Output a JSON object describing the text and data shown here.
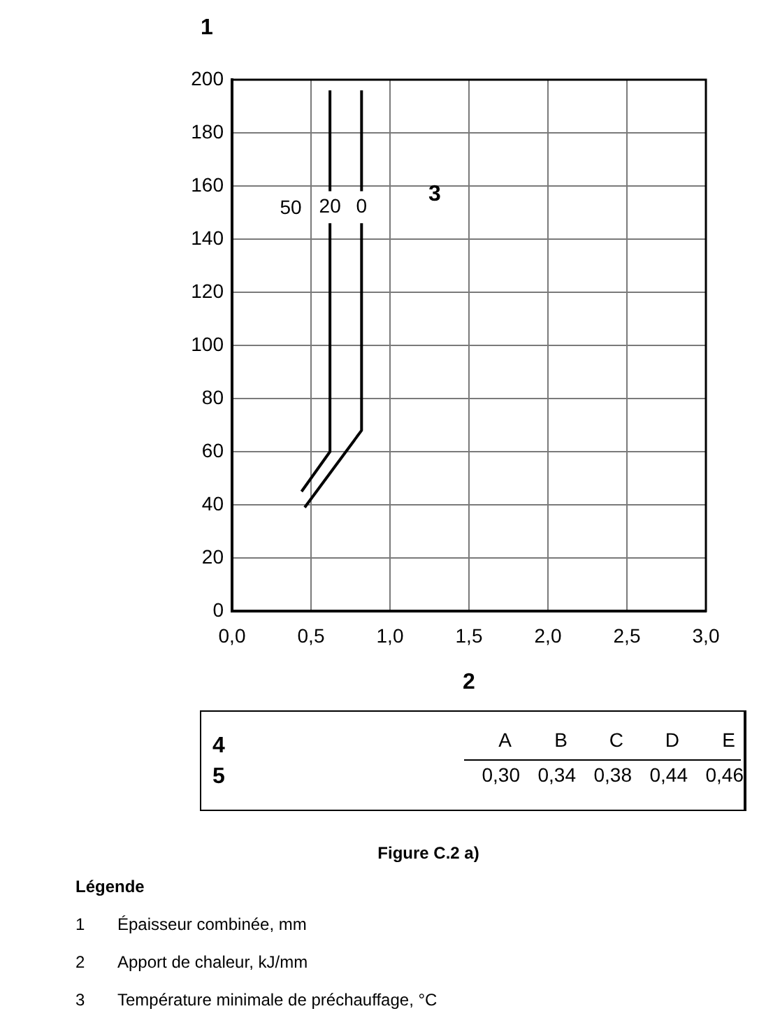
{
  "chart_data": [
    {
      "type": "line",
      "xlabel": "2",
      "ylabel": "1",
      "xlim": [
        0,
        3
      ],
      "xticks": [
        {
          "value": 0,
          "label": "0,0"
        },
        {
          "value": 0.5,
          "label": "0,5"
        },
        {
          "value": 1,
          "label": "1,0"
        },
        {
          "value": 1.5,
          "label": "1,5"
        },
        {
          "value": 2,
          "label": "2,0"
        },
        {
          "value": 2.5,
          "label": "2,5"
        },
        {
          "value": 3,
          "label": "3,0"
        }
      ],
      "ylim": [
        0,
        200
      ],
      "yticks": [
        0,
        20,
        40,
        60,
        80,
        100,
        120,
        140,
        160,
        180,
        200
      ],
      "grid": true,
      "marker": "none",
      "line_style": "solid",
      "series": [
        {
          "name": "20",
          "color": "#000000",
          "x": [
            0.44,
            0.62,
            0.62
          ],
          "values": [
            45,
            60,
            146
          ]
        },
        {
          "color": "#000000",
          "x": [
            0.62,
            0.62
          ],
          "values": [
            158,
            196
          ]
        },
        {
          "name": "0",
          "color": "#000000",
          "x": [
            0.46,
            0.82,
            0.82
          ],
          "values": [
            39,
            68,
            146
          ]
        },
        {
          "color": "#000000",
          "x": [
            0.82,
            0.82
          ],
          "values": [
            158,
            196
          ]
        }
      ],
      "annotations": [
        "50",
        "3"
      ]
    },
    {
      "type": "other",
      "title": "Figure C.2 a)",
      "xlabel": "4",
      "ylabel": "5",
      "categories": [
        "A",
        "B",
        "C",
        "D",
        "E"
      ],
      "value_labels": [
        "0,30",
        "0,34",
        "0,38",
        "0,44",
        "0,46"
      ],
      "annotations": [
        "Légende",
        "1 Épaisseur combinée, mm",
        "2 Apport de chaleur, kJ/mm",
        "3 Température minimale de préchauffage, °C"
      ]
    }
  ]
}
